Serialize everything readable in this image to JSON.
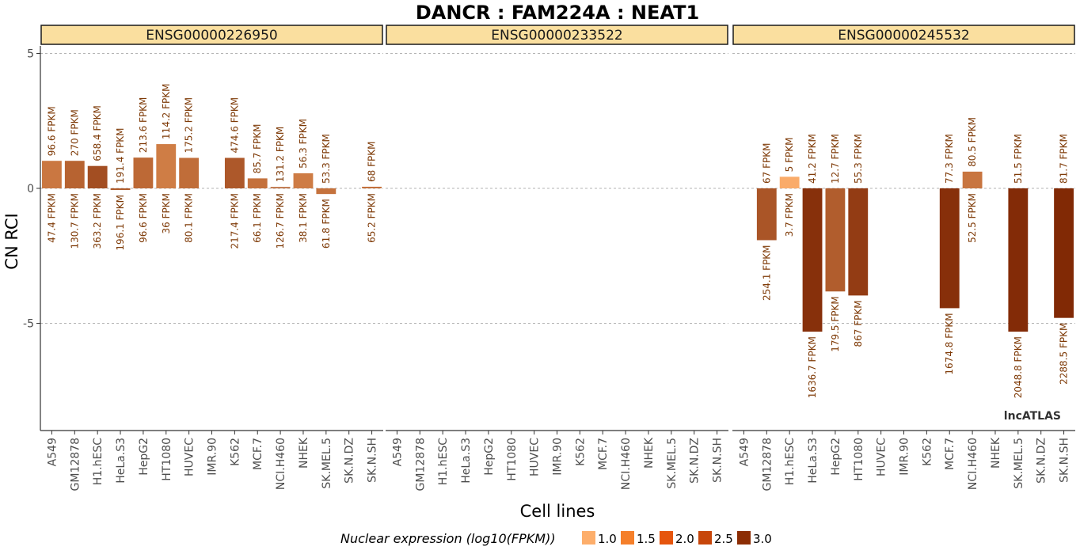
{
  "chart_data": {
    "type": "bar",
    "title": "DANCR : FAM224A : NEAT1",
    "xlabel": "Cell lines",
    "ylabel": "CN RCI",
    "ylim": [
      -9.0,
      5.3
    ],
    "yticks": [
      5,
      0,
      -5
    ],
    "ytick_labels": [
      "5",
      "0",
      "-5"
    ],
    "grid": "dashed horizontal at y ticks",
    "categories": [
      "A549",
      "GM12878",
      "H1.hESC",
      "HeLa.S3",
      "HepG2",
      "HT1080",
      "HUVEC",
      "IMR.90",
      "K562",
      "MCF.7",
      "NCI.H460",
      "NHEK",
      "SK.MEL.5",
      "SK.N.DZ",
      "SK.N.SH"
    ],
    "panels": [
      {
        "name": "ENSG00000226950",
        "bars": [
          {
            "cell": "A549",
            "rci": 1.02,
            "nuclear_log10": 1.68,
            "top_label": "96.6 FPKM",
            "bottom_label": "47.4 FPKM"
          },
          {
            "cell": "GM12878",
            "rci": 1.02,
            "nuclear_log10": 2.12,
            "top_label": "270 FPKM",
            "bottom_label": "130.7 FPKM"
          },
          {
            "cell": "H1.hESC",
            "rci": 0.83,
            "nuclear_log10": 2.56,
            "top_label": "658.4 FPKM",
            "bottom_label": "363.2 FPKM"
          },
          {
            "cell": "HeLa.S3",
            "rci": -0.06,
            "nuclear_log10": 2.29,
            "top_label": "191.4 FPKM",
            "bottom_label": "196.1 FPKM"
          },
          {
            "cell": "HepG2",
            "rci": 1.14,
            "nuclear_log10": 1.98,
            "top_label": "213.6 FPKM",
            "bottom_label": "96.6 FPKM"
          },
          {
            "cell": "HT1080",
            "rci": 1.64,
            "nuclear_log10": 1.56,
            "top_label": "114.2 FPKM",
            "bottom_label": "36 FPKM"
          },
          {
            "cell": "HUVEC",
            "rci": 1.13,
            "nuclear_log10": 1.9,
            "top_label": "175.2 FPKM",
            "bottom_label": "80.1 FPKM"
          },
          {
            "cell": "IMR.90",
            "rci": null,
            "nuclear_log10": null,
            "top_label": "",
            "bottom_label": ""
          },
          {
            "cell": "K562",
            "rci": 1.13,
            "nuclear_log10": 2.34,
            "top_label": "474.6 FPKM",
            "bottom_label": "217.4 FPKM"
          },
          {
            "cell": "MCF.7",
            "rci": 0.37,
            "nuclear_log10": 1.82,
            "top_label": "85.7 FPKM",
            "bottom_label": "66.1 FPKM"
          },
          {
            "cell": "NCI.H460",
            "rci": 0.05,
            "nuclear_log10": 2.1,
            "top_label": "131.2 FPKM",
            "bottom_label": "126.7 FPKM"
          },
          {
            "cell": "NHEK",
            "rci": 0.56,
            "nuclear_log10": 1.58,
            "top_label": "56.3 FPKM",
            "bottom_label": "38.1 FPKM"
          },
          {
            "cell": "SK.MEL.5",
            "rci": -0.21,
            "nuclear_log10": 1.79,
            "top_label": "53.3 FPKM",
            "bottom_label": "61.8 FPKM"
          },
          {
            "cell": "SK.N.DZ",
            "rci": null,
            "nuclear_log10": null,
            "top_label": "",
            "bottom_label": ""
          },
          {
            "cell": "SK.N.SH",
            "rci": 0.06,
            "nuclear_log10": 1.81,
            "top_label": "68 FPKM",
            "bottom_label": "65.2 FPKM"
          }
        ]
      },
      {
        "name": "ENSG00000233522",
        "bars": []
      },
      {
        "name": "ENSG00000245532",
        "bars": [
          {
            "cell": "A549",
            "rci": null,
            "nuclear_log10": null,
            "top_label": "",
            "bottom_label": ""
          },
          {
            "cell": "GM12878",
            "rci": -1.92,
            "nuclear_log10": 2.41,
            "top_label": "67 FPKM",
            "bottom_label": "254.1 FPKM"
          },
          {
            "cell": "H1.hESC",
            "rci": 0.43,
            "nuclear_log10": 0.57,
            "top_label": "5 FPKM",
            "bottom_label": "3.7 FPKM"
          },
          {
            "cell": "HeLa.S3",
            "rci": -5.31,
            "nuclear_log10": 3.21,
            "top_label": "41.2 FPKM",
            "bottom_label": "1636.7 FPKM"
          },
          {
            "cell": "HepG2",
            "rci": -3.82,
            "nuclear_log10": 2.25,
            "top_label": "12.7 FPKM",
            "bottom_label": "179.5 FPKM"
          },
          {
            "cell": "HT1080",
            "rci": -3.97,
            "nuclear_log10": 2.94,
            "top_label": "55.3 FPKM",
            "bottom_label": "867 FPKM"
          },
          {
            "cell": "HUVEC",
            "rci": null,
            "nuclear_log10": null,
            "top_label": "",
            "bottom_label": ""
          },
          {
            "cell": "IMR.90",
            "rci": null,
            "nuclear_log10": null,
            "top_label": "",
            "bottom_label": ""
          },
          {
            "cell": "K562",
            "rci": null,
            "nuclear_log10": null,
            "top_label": "",
            "bottom_label": ""
          },
          {
            "cell": "MCF.7",
            "rci": -4.44,
            "nuclear_log10": 3.22,
            "top_label": "77.3 FPKM",
            "bottom_label": "1674.8 FPKM"
          },
          {
            "cell": "NCI.H460",
            "rci": 0.62,
            "nuclear_log10": 1.72,
            "top_label": "80.5 FPKM",
            "bottom_label": "52.5 FPKM"
          },
          {
            "cell": "NHEK",
            "rci": null,
            "nuclear_log10": null,
            "top_label": "",
            "bottom_label": ""
          },
          {
            "cell": "SK.MEL.5",
            "rci": -5.31,
            "nuclear_log10": 3.31,
            "top_label": "51.5 FPKM",
            "bottom_label": "2048.8 FPKM"
          },
          {
            "cell": "SK.N.DZ",
            "rci": null,
            "nuclear_log10": null,
            "top_label": "",
            "bottom_label": ""
          },
          {
            "cell": "SK.N.SH",
            "rci": -4.8,
            "nuclear_log10": 3.36,
            "top_label": "81.7 FPKM",
            "bottom_label": "2288.5 FPKM"
          }
        ]
      }
    ],
    "legend": {
      "title": "Nuclear expression (log10(FPKM))",
      "placement": "bottom",
      "items": [
        {
          "label": "1.0",
          "color": "#fdae6b"
        },
        {
          "label": "1.5",
          "color": "#f57f2a"
        },
        {
          "label": "2.0",
          "color": "#e6550d"
        },
        {
          "label": "2.5",
          "color": "#c7460a"
        },
        {
          "label": "3.0",
          "color": "#8c2d04"
        }
      ]
    },
    "color_scale": {
      "low": "#fdae6b",
      "high": "#7f2704"
    },
    "watermark": "lncATLAS"
  }
}
